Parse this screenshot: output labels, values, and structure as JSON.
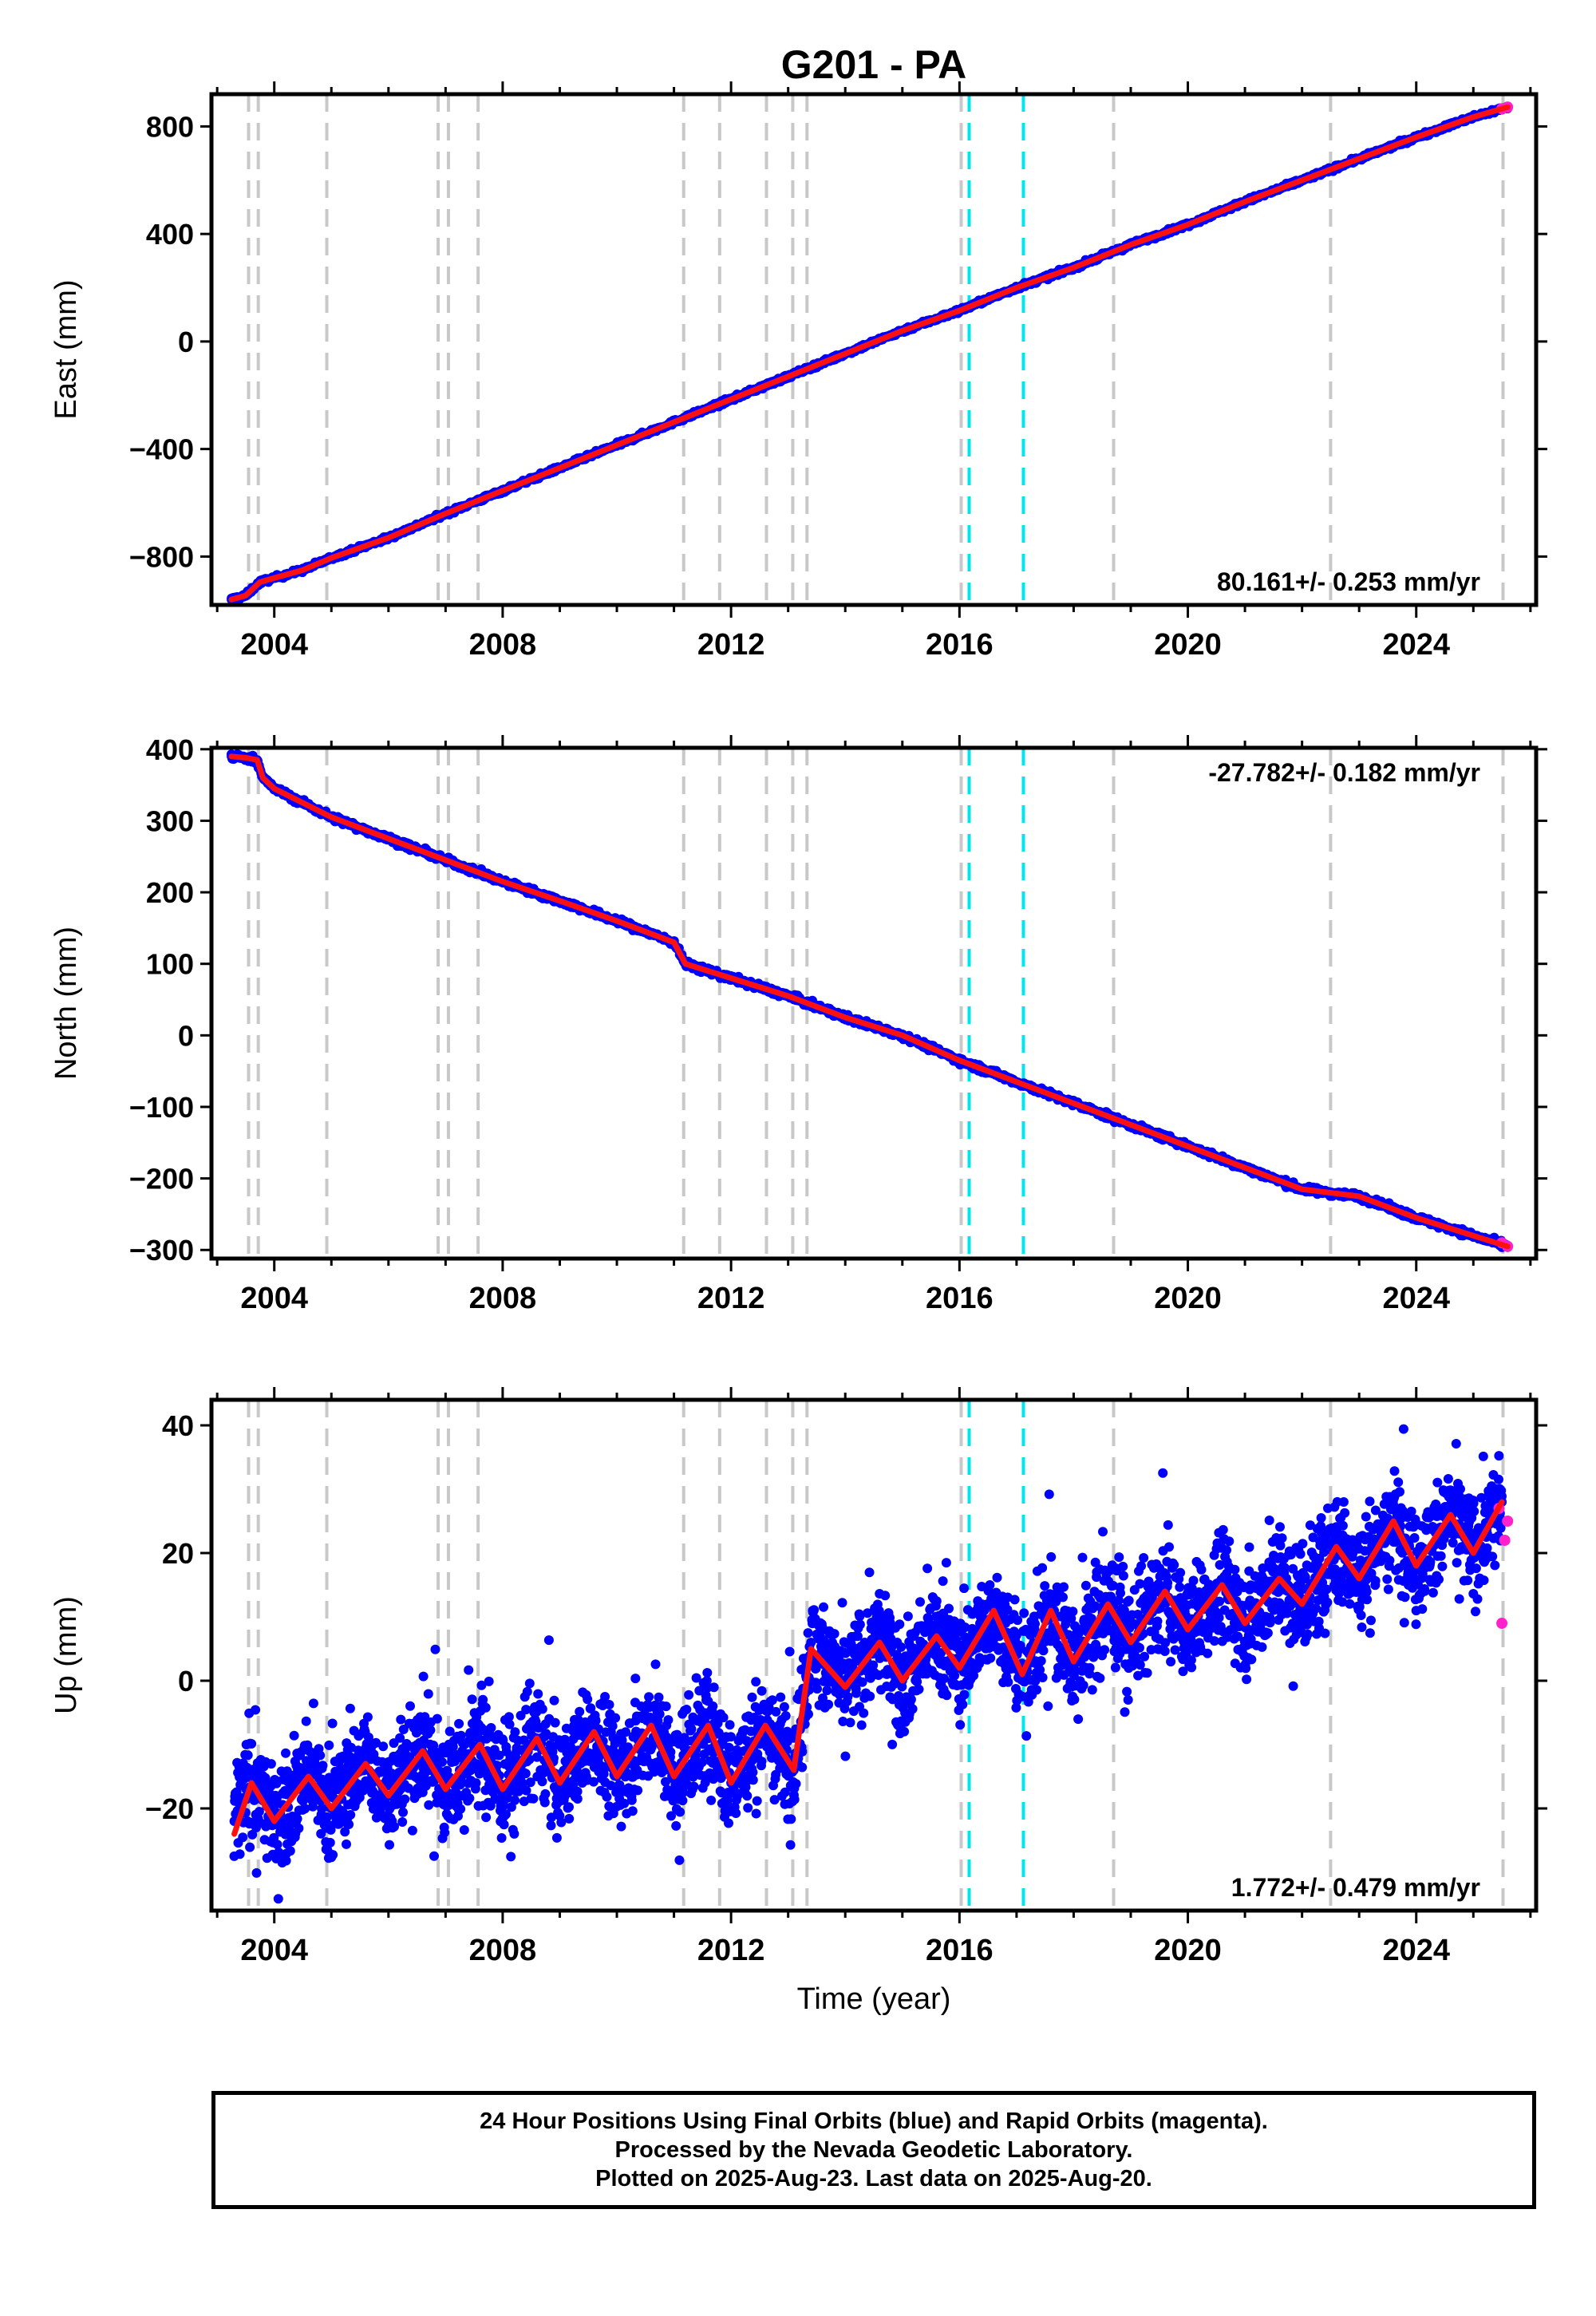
{
  "title": "G201 - PA",
  "caption": {
    "lines": [
      "24 Hour Positions Using Final Orbits (blue) and Rapid Orbits (magenta).",
      "Processed by the Nevada Geodetic Laboratory.",
      "Plotted on 2025-Aug-23. Last data on 2025-Aug-20."
    ]
  },
  "colors": {
    "final_orbits": "#0000ff",
    "rapid_orbits": "#ff22cc",
    "model_fit": "#ff1010",
    "equipment_change": "#c8c8c8",
    "earthquake": "#00e5ee"
  },
  "chart_data": [
    {
      "type": "scatter",
      "name": "east",
      "ylabel": "East (mm)",
      "xlabel": "",
      "xlim": [
        2002.9,
        2026.1
      ],
      "ylim": [
        -980,
        920
      ],
      "yticks": [
        -800,
        -400,
        0,
        400,
        800
      ],
      "ytick_labels": [
        "−800",
        "−400",
        "0",
        "400",
        "800"
      ],
      "xticks": [
        2004,
        2008,
        2012,
        2016,
        2020,
        2024
      ],
      "xtick_labels": [
        "2004",
        "2008",
        "2012",
        "2016",
        "2020",
        "2024"
      ],
      "rate_label": "80.161+/- 0.253 mm/yr",
      "rate_position": "bottom-right",
      "series": [
        {
          "name": "Final Orbits",
          "color": "#0000ff",
          "x": [
            2003.25,
            2003.5,
            2003.75,
            2004.0,
            2004.5,
            2005.0,
            2006.0,
            2007.0,
            2008.0,
            2009.0,
            2010.0,
            2011.0,
            2012.0,
            2013.0,
            2014.0,
            2015.0,
            2016.0,
            2017.0,
            2018.0,
            2019.0,
            2020.0,
            2021.0,
            2022.0,
            2023.0,
            2024.0,
            2025.0,
            2025.6
          ],
          "y": [
            -960,
            -945,
            -895,
            -880,
            -850,
            -805,
            -730,
            -640,
            -555,
            -470,
            -385,
            -300,
            -215,
            -130,
            -45,
            40,
            115,
            200,
            275,
            360,
            435,
            520,
            600,
            680,
            760,
            835,
            872
          ]
        },
        {
          "name": "Rapid Orbits",
          "color": "#ff22cc",
          "x": [
            2025.5,
            2025.6
          ],
          "y": [
            866,
            872
          ]
        },
        {
          "name": "Model Fit",
          "color": "#ff1010",
          "x": [
            2003.25,
            2003.5,
            2003.75,
            2004.0,
            2004.5,
            2005.0,
            2006.0,
            2007.0,
            2008.0,
            2009.0,
            2010.0,
            2011.0,
            2012.0,
            2013.0,
            2014.0,
            2015.0,
            2016.0,
            2017.0,
            2018.0,
            2019.0,
            2020.0,
            2021.0,
            2022.0,
            2023.0,
            2024.0,
            2025.0,
            2025.6
          ],
          "y": [
            -960,
            -945,
            -895,
            -880,
            -850,
            -805,
            -730,
            -640,
            -555,
            -470,
            -385,
            -300,
            -215,
            -130,
            -45,
            40,
            115,
            200,
            275,
            360,
            435,
            520,
            600,
            680,
            760,
            835,
            872
          ]
        }
      ],
      "equipment_change_lines": [
        2003.55,
        2003.72,
        2004.92,
        2006.87,
        2007.05,
        2007.57,
        2011.17,
        2011.8,
        2012.62,
        2013.08,
        2013.33,
        2016.03,
        2018.7,
        2022.5,
        2025.52
      ],
      "earthquake_lines": [
        2016.17,
        2017.12
      ]
    },
    {
      "type": "scatter",
      "name": "north",
      "ylabel": "North (mm)",
      "xlabel": "",
      "xlim": [
        2002.9,
        2026.1
      ],
      "ylim": [
        -312,
        402
      ],
      "yticks": [
        -300,
        -200,
        -100,
        0,
        100,
        200,
        300,
        400
      ],
      "ytick_labels": [
        "−300",
        "−200",
        "−100",
        "0",
        "100",
        "200",
        "300",
        "400"
      ],
      "xticks": [
        2004,
        2008,
        2012,
        2016,
        2020,
        2024
      ],
      "xtick_labels": [
        "2004",
        "2008",
        "2012",
        "2016",
        "2020",
        "2024"
      ],
      "rate_label": "-27.782+/- 0.182 mm/yr",
      "rate_position": "top-right",
      "series": [
        {
          "name": "Final Orbits",
          "color": "#0000ff",
          "x": [
            2003.25,
            2003.5,
            2003.7,
            2003.8,
            2004.0,
            2004.5,
            2005.0,
            2006.0,
            2007.0,
            2008.0,
            2009.0,
            2010.0,
            2011.0,
            2011.2,
            2012.0,
            2013.0,
            2014.0,
            2015.0,
            2016.0,
            2017.0,
            2018.0,
            2019.0,
            2020.0,
            2021.0,
            2022.0,
            2023.0,
            2024.0,
            2025.0,
            2025.6
          ],
          "y": [
            390,
            388,
            385,
            360,
            345,
            325,
            305,
            275,
            245,
            215,
            188,
            160,
            130,
            100,
            80,
            55,
            25,
            0,
            -35,
            -65,
            -95,
            -125,
            -155,
            -185,
            -215,
            -225,
            -255,
            -280,
            -295
          ]
        },
        {
          "name": "Rapid Orbits",
          "color": "#ff22cc",
          "x": [
            2025.5,
            2025.6
          ],
          "y": [
            -290,
            -295
          ]
        },
        {
          "name": "Model Fit",
          "color": "#ff1010",
          "x": [
            2003.25,
            2003.5,
            2003.7,
            2003.8,
            2004.0,
            2004.5,
            2005.0,
            2006.0,
            2007.0,
            2008.0,
            2009.0,
            2010.0,
            2011.0,
            2011.2,
            2012.0,
            2013.0,
            2014.0,
            2015.0,
            2016.0,
            2017.0,
            2018.0,
            2019.0,
            2020.0,
            2021.0,
            2022.0,
            2023.0,
            2024.0,
            2025.0,
            2025.6
          ],
          "y": [
            390,
            388,
            385,
            360,
            345,
            325,
            305,
            275,
            245,
            215,
            188,
            160,
            130,
            100,
            80,
            55,
            25,
            0,
            -35,
            -65,
            -95,
            -125,
            -155,
            -185,
            -215,
            -225,
            -255,
            -280,
            -295
          ]
        }
      ],
      "equipment_change_lines": [
        2003.55,
        2003.72,
        2004.92,
        2006.87,
        2007.05,
        2007.57,
        2011.17,
        2011.8,
        2012.62,
        2013.08,
        2013.33,
        2016.03,
        2018.7,
        2022.5,
        2025.52
      ],
      "earthquake_lines": [
        2016.17,
        2017.12
      ]
    },
    {
      "type": "scatter",
      "name": "up",
      "ylabel": "Up (mm)",
      "xlabel": "Time (year)",
      "xlim": [
        2002.9,
        2026.1
      ],
      "ylim": [
        -36,
        44
      ],
      "yticks": [
        -20,
        0,
        20,
        40
      ],
      "ytick_labels": [
        "−20",
        "0",
        "20",
        "40"
      ],
      "xticks": [
        2004,
        2008,
        2012,
        2016,
        2020,
        2024
      ],
      "xtick_labels": [
        "2004",
        "2008",
        "2012",
        "2016",
        "2020",
        "2024"
      ],
      "rate_label": "1.772+/- 0.479 mm/yr",
      "rate_position": "bottom-right",
      "series": [
        {
          "name": "Final Orbits",
          "color": "#0000ff",
          "x": [
            2003.3,
            2003.6,
            2004.0,
            2004.6,
            2005.0,
            2005.6,
            2006.0,
            2006.6,
            2007.0,
            2007.6,
            2008.0,
            2008.6,
            2009.0,
            2009.6,
            2010.0,
            2010.6,
            2011.0,
            2011.6,
            2012.0,
            2012.6,
            2013.1,
            2013.4,
            2014.0,
            2014.6,
            2015.0,
            2015.6,
            2016.0,
            2016.6,
            2017.1,
            2017.6,
            2018.0,
            2018.6,
            2019.0,
            2019.6,
            2020.0,
            2020.6,
            2021.0,
            2021.6,
            2022.0,
            2022.6,
            2023.0,
            2023.6,
            2024.0,
            2024.6,
            2025.0,
            2025.5
          ],
          "y": [
            -22,
            -15,
            -22,
            -14,
            -20,
            -12,
            -18,
            -10,
            -17,
            -10,
            -17,
            -9,
            -16,
            -8,
            -15,
            -7,
            -15,
            -7,
            -16,
            -7,
            -14,
            6,
            -1,
            7,
            0,
            8,
            2,
            11,
            1,
            11,
            3,
            12,
            6,
            14,
            8,
            15,
            9,
            16,
            12,
            21,
            16,
            25,
            18,
            26,
            20,
            28
          ]
        },
        {
          "name": "Rapid Orbits",
          "color": "#ff22cc",
          "x": [
            2025.45,
            2025.5,
            2025.55,
            2025.6
          ],
          "y": [
            27,
            9,
            22,
            25
          ]
        },
        {
          "name": "Model Fit",
          "color": "#ff1010",
          "x": [
            2003.3,
            2003.6,
            2004.0,
            2004.6,
            2005.0,
            2005.6,
            2006.0,
            2006.6,
            2007.0,
            2007.6,
            2008.0,
            2008.6,
            2009.0,
            2009.6,
            2010.0,
            2010.6,
            2011.0,
            2011.6,
            2012.0,
            2012.6,
            2013.1,
            2013.4,
            2014.0,
            2014.6,
            2015.0,
            2015.6,
            2016.0,
            2016.6,
            2017.1,
            2017.6,
            2018.0,
            2018.6,
            2019.0,
            2019.6,
            2020.0,
            2020.6,
            2021.0,
            2021.6,
            2022.0,
            2022.6,
            2023.0,
            2023.6,
            2024.0,
            2024.6,
            2025.0,
            2025.5
          ],
          "y": [
            -24,
            -16,
            -22,
            -15,
            -20,
            -13,
            -18,
            -11,
            -17,
            -10,
            -17,
            -9,
            -16,
            -8,
            -15,
            -7,
            -15,
            -7,
            -16,
            -7,
            -14,
            5,
            -1,
            6,
            0,
            7,
            2,
            11,
            1,
            11,
            3,
            12,
            6,
            14,
            8,
            15,
            9,
            16,
            12,
            21,
            16,
            25,
            18,
            26,
            20,
            28
          ]
        }
      ],
      "equipment_change_lines": [
        2003.55,
        2003.72,
        2004.92,
        2006.87,
        2007.05,
        2007.57,
        2011.17,
        2011.8,
        2012.62,
        2013.08,
        2013.33,
        2016.03,
        2018.7,
        2022.5,
        2025.52
      ],
      "earthquake_lines": [
        2016.17,
        2017.12
      ]
    }
  ]
}
